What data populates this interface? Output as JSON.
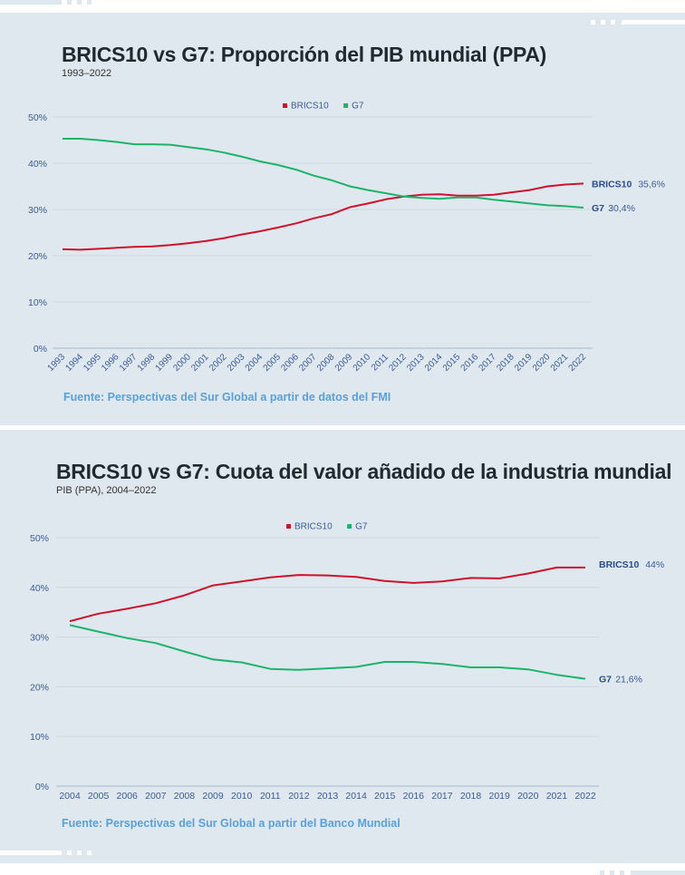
{
  "colors": {
    "brics": "#d0112b",
    "g7": "#1db36b",
    "axis_text": "#3a5a9a",
    "background": "#dfe8ee",
    "source": "#5a9fd8"
  },
  "chart_data": [
    {
      "type": "line",
      "title": "BRICS10 vs G7: Proporción del PIB mundial (PPA)",
      "subtitle": "1993–2022",
      "source": "Fuente: Perspectivas del Sur Global a partir de datos del FMI",
      "legend": {
        "placement": "top-center",
        "items": [
          "BRICS10",
          "G7"
        ]
      },
      "ylim": [
        0,
        50
      ],
      "yticks": [
        "0%",
        "10%",
        "20%",
        "30%",
        "40%",
        "50%"
      ],
      "grid": true,
      "x": [
        "1993",
        "1994",
        "1995",
        "1996",
        "1997",
        "1998",
        "1999",
        "2000",
        "2001",
        "2002",
        "2003",
        "2004",
        "2005",
        "2006",
        "2007",
        "2008",
        "2009",
        "2010",
        "2011",
        "2012",
        "2013",
        "2014",
        "2015",
        "2016",
        "2017",
        "2018",
        "2019",
        "2020",
        "2021",
        "2022"
      ],
      "x_label_rotation": "diagonal",
      "series": [
        {
          "name": "BRICS10",
          "end_label": "35,6%",
          "values": [
            21.4,
            21.3,
            21.5,
            21.7,
            21.9,
            22.0,
            22.3,
            22.7,
            23.2,
            23.8,
            24.6,
            25.3,
            26.1,
            27.0,
            28.1,
            29.0,
            30.5,
            31.3,
            32.2,
            32.8,
            33.2,
            33.3,
            33.0,
            33.0,
            33.2,
            33.7,
            34.2,
            35.0,
            35.4,
            35.6
          ]
        },
        {
          "name": "G7",
          "end_label": "30,4%",
          "values": [
            45.3,
            45.3,
            45.0,
            44.6,
            44.1,
            44.1,
            44.0,
            43.5,
            43.0,
            42.3,
            41.4,
            40.4,
            39.6,
            38.6,
            37.3,
            36.3,
            35.0,
            34.2,
            33.5,
            32.8,
            32.5,
            32.3,
            32.6,
            32.6,
            32.1,
            31.7,
            31.3,
            30.9,
            30.7,
            30.4
          ]
        }
      ]
    },
    {
      "type": "line",
      "title": "BRICS10 vs G7: Cuota del valor añadido de la industria mundial",
      "subtitle": "PIB (PPA), 2004–2022",
      "source": "Fuente: Perspectivas del Sur Global a partir del Banco Mundial",
      "legend": {
        "placement": "top-center",
        "items": [
          "BRICS10",
          "G7"
        ]
      },
      "ylim": [
        0,
        50
      ],
      "yticks": [
        "0%",
        "10%",
        "20%",
        "30%",
        "40%",
        "50%"
      ],
      "grid": true,
      "x": [
        "2004",
        "2005",
        "2006",
        "2007",
        "2008",
        "2009",
        "2010",
        "2011",
        "2012",
        "2013",
        "2014",
        "2015",
        "2016",
        "2017",
        "2018",
        "2019",
        "2020",
        "2021",
        "2022"
      ],
      "x_label_rotation": "horizontal",
      "series": [
        {
          "name": "BRICS10",
          "end_label": "44%",
          "values": [
            33.2,
            34.7,
            35.7,
            36.8,
            38.4,
            40.4,
            41.2,
            42.0,
            42.5,
            42.4,
            42.1,
            41.3,
            40.9,
            41.2,
            41.9,
            41.8,
            42.8,
            44.0,
            44.0
          ]
        },
        {
          "name": "G7",
          "end_label": "21,6%",
          "values": [
            32.4,
            31.1,
            29.8,
            28.8,
            27.1,
            25.5,
            24.9,
            23.6,
            23.4,
            23.7,
            24.0,
            25.0,
            25.0,
            24.6,
            23.9,
            23.9,
            23.5,
            22.4,
            21.6
          ]
        }
      ]
    }
  ]
}
